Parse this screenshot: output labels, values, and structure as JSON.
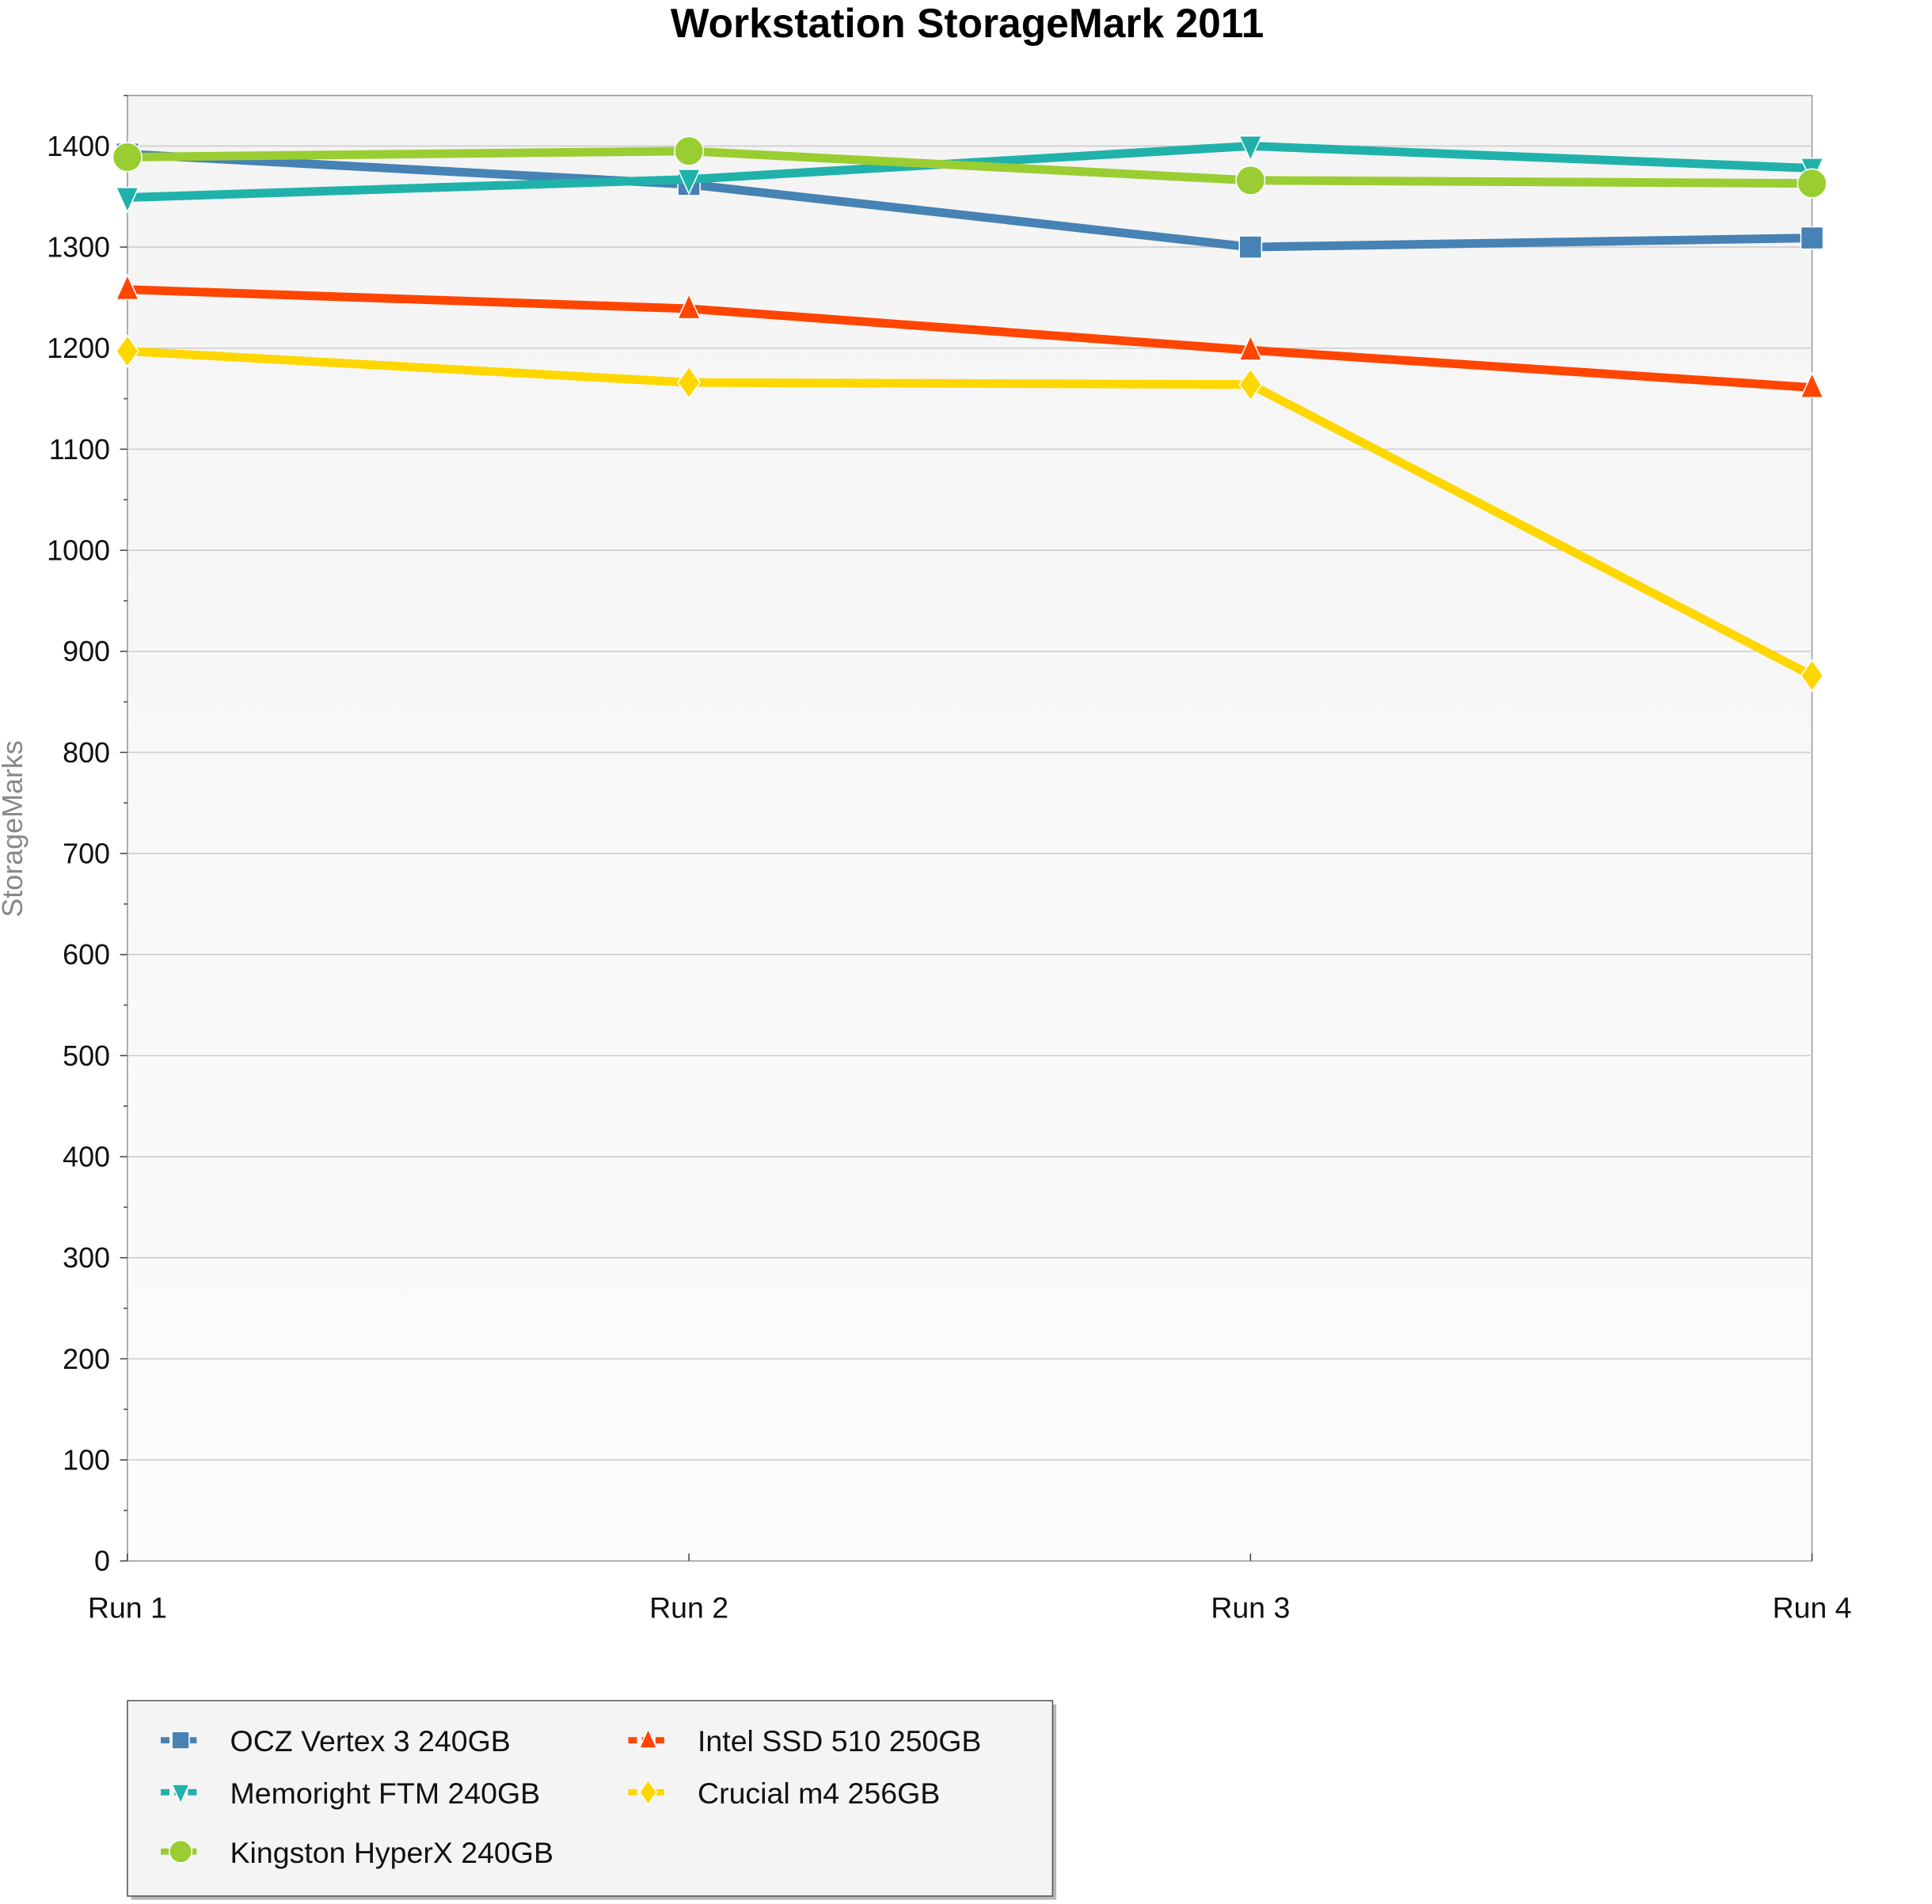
{
  "chart_data": {
    "type": "line",
    "title": "Workstation StorageMark 2011",
    "xlabel": "",
    "ylabel": "StorageMarks",
    "categories": [
      "Run 1",
      "Run 2",
      "Run 3",
      "Run 4"
    ],
    "ylim": [
      0,
      1450
    ],
    "yticks": [
      0,
      100,
      200,
      300,
      400,
      500,
      600,
      700,
      800,
      900,
      1000,
      1100,
      1200,
      1300,
      1400
    ],
    "grid": true,
    "legend_position": "bottom-left",
    "series": [
      {
        "name": "OCZ Vertex 3 240GB",
        "color": "#4682b4",
        "marker": "square",
        "values": [
          1392,
          1362,
          1300,
          1309
        ]
      },
      {
        "name": "Memoright FTM 240GB",
        "color": "#20b2aa",
        "marker": "triangle-down",
        "values": [
          1349,
          1367,
          1400,
          1378
        ]
      },
      {
        "name": "Kingston HyperX 240GB",
        "color": "#9acd32",
        "marker": "circle",
        "values": [
          1389,
          1395,
          1366,
          1363
        ]
      },
      {
        "name": "Intel SSD 510 250GB",
        "color": "#ff4500",
        "marker": "triangle-up",
        "values": [
          1258,
          1239,
          1198,
          1161
        ]
      },
      {
        "name": "Crucial m4 256GB",
        "color": "#ffd700",
        "marker": "diamond",
        "values": [
          1197,
          1166,
          1164,
          876
        ]
      }
    ]
  }
}
